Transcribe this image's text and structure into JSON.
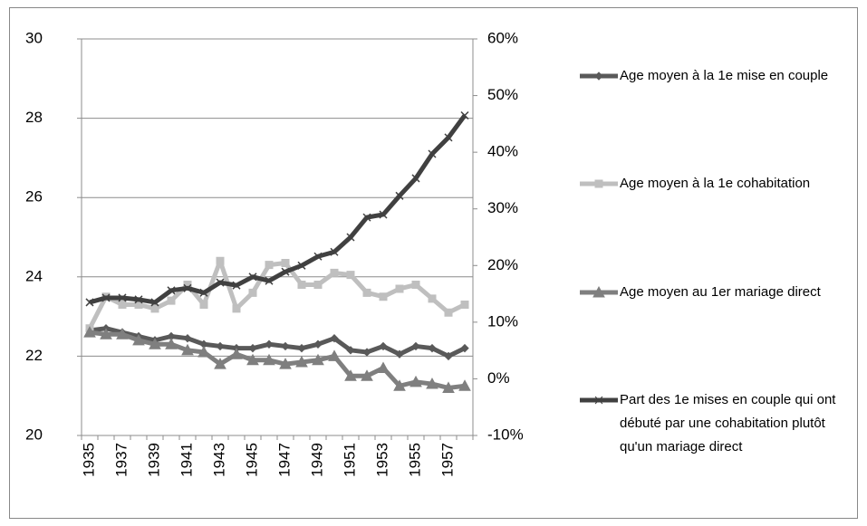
{
  "chart_data": {
    "type": "line",
    "categories": [
      "1935",
      null,
      "1937",
      null,
      "1939",
      null,
      "1941",
      null,
      "1943",
      null,
      "1945",
      null,
      "1947",
      null,
      "1949",
      null,
      "1951",
      null,
      "1953",
      null,
      "1955",
      null,
      "1957",
      null
    ],
    "ylim": [
      20,
      30
    ],
    "yticks": [
      20,
      22,
      24,
      26,
      28,
      30
    ],
    "y2lim": [
      -10,
      60
    ],
    "y2ticks": [
      {
        "value": -10,
        "label": "-10%"
      },
      {
        "value": 0,
        "label": "0%"
      },
      {
        "value": 10,
        "label": "10%"
      },
      {
        "value": 20,
        "label": "20%"
      },
      {
        "value": 30,
        "label": "30%"
      },
      {
        "value": 40,
        "label": "40%"
      },
      {
        "value": 50,
        "label": "50%"
      },
      {
        "value": 60,
        "label": "60%"
      }
    ],
    "grid": true,
    "legend": "right",
    "series": [
      {
        "name": "Age moyen à la 1e mise en couple",
        "color": "#595959",
        "marker": "diamond",
        "values": [
          22.65,
          22.7,
          22.6,
          22.5,
          22.4,
          22.5,
          22.45,
          22.3,
          22.25,
          22.2,
          22.2,
          22.3,
          22.25,
          22.2,
          22.3,
          22.45,
          22.15,
          22.1,
          22.25,
          22.05,
          22.25,
          22.2,
          22.0,
          22.2
        ]
      },
      {
        "name": "Age moyen à la 1e cohabitation",
        "color": "#bfbfbf",
        "marker": "square",
        "values": [
          22.7,
          23.5,
          23.3,
          23.3,
          23.2,
          23.4,
          23.8,
          23.3,
          24.4,
          23.2,
          23.6,
          24.3,
          24.35,
          23.8,
          23.8,
          24.1,
          24.05,
          23.6,
          23.5,
          23.7,
          23.8,
          23.45,
          23.1,
          23.3
        ]
      },
      {
        "name": "Age moyen au 1er mariage direct",
        "color": "#7f7f7f",
        "marker": "triangle",
        "values": [
          22.6,
          22.55,
          22.55,
          22.4,
          22.3,
          22.3,
          22.15,
          22.1,
          21.8,
          22.05,
          21.9,
          21.9,
          21.8,
          21.85,
          21.9,
          22.0,
          21.5,
          21.5,
          21.7,
          21.25,
          21.35,
          21.3,
          21.2,
          21.25
        ]
      },
      {
        "name": "Part des 1e mises en couple qui ont débuté par une cohabitation plutôt qu'un mariage direct",
        "color": "#404040",
        "marker": "cross",
        "axis": "y2",
        "values": [
          13.5,
          14.3,
          14.3,
          14.0,
          13.5,
          15.6,
          16.0,
          15.2,
          17.0,
          16.5,
          18.0,
          17.3,
          18.9,
          20.0,
          21.6,
          22.4,
          25.0,
          28.5,
          29.0,
          32.3,
          35.4,
          39.7,
          42.6,
          46.5
        ]
      }
    ]
  }
}
